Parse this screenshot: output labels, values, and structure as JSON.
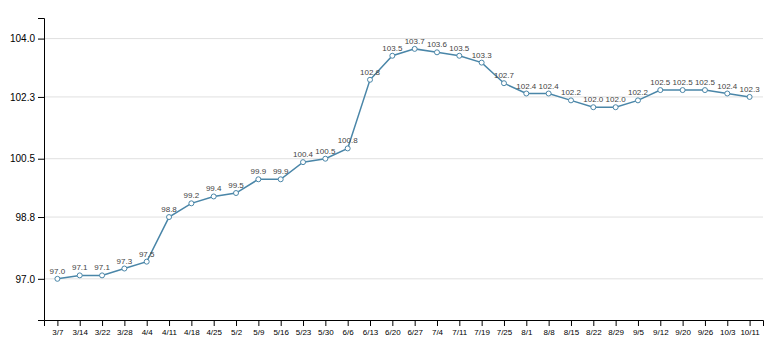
{
  "chart_data": {
    "type": "line",
    "categories": [
      "3/7",
      "3/14",
      "3/22",
      "3/28",
      "4/4",
      "4/11",
      "4/18",
      "4/25",
      "5/2",
      "5/9",
      "5/16",
      "5/23",
      "5/30",
      "6/6",
      "6/13",
      "6/20",
      "6/27",
      "7/4",
      "7/11",
      "7/19",
      "7/25",
      "8/1",
      "8/8",
      "8/15",
      "8/22",
      "8/29",
      "9/5",
      "9/12",
      "9/20",
      "9/26",
      "10/3",
      "10/11"
    ],
    "values": [
      97.0,
      97.1,
      97.1,
      97.3,
      97.5,
      98.8,
      99.2,
      99.4,
      99.5,
      99.9,
      99.9,
      100.4,
      100.5,
      100.8,
      102.8,
      103.5,
      103.7,
      103.6,
      103.5,
      103.3,
      102.7,
      102.4,
      102.4,
      102.2,
      102.0,
      102.0,
      102.2,
      102.5,
      102.5,
      102.5,
      102.4,
      102.3
    ],
    "value_labels": [
      "97.0",
      "97.1",
      "97.1",
      "97.3",
      "97.5",
      "98.8",
      "99.2",
      "99.4",
      "99.5",
      "99.9",
      "99.9",
      "100.4",
      "100.5",
      "100.8",
      "102.8",
      "103.5",
      "103.7",
      "103.6",
      "103.5",
      "103.3",
      "102.7",
      "102.4",
      "102.4",
      "102.2",
      "102.0",
      "102.0",
      "102.2",
      "102.5",
      "102.5",
      "102.5",
      "102.4",
      "102.3"
    ],
    "color": "#4a86a8",
    "marker": "circle",
    "data_labels": true,
    "grid": true,
    "ylim": [
      95.8,
      104.6
    ],
    "yticks": [
      {
        "value": 97.0,
        "label": "97.0"
      },
      98.8,
      100.5,
      102.3,
      {
        "value": 104.0,
        "label": "104.0"
      }
    ]
  }
}
